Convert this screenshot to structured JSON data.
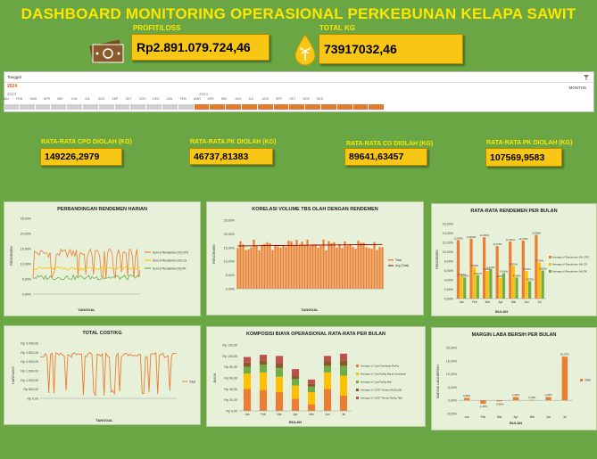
{
  "title": "DASHBOARD MONITORING OPERASIONAL PERKEBUNAN KELAPA SAWIT",
  "kpis": {
    "profit": {
      "label": "PROFIT/LOSS",
      "value": "Rp2.891.079.724,46",
      "icon": "money-icon"
    },
    "total_kg": {
      "label": "TOTAL KG",
      "value": "73917032,46",
      "icon": "oil-drop-palm-icon"
    }
  },
  "timeline": {
    "header": "Tanggal",
    "selected_label": "2024",
    "range_right": "MONTHS",
    "years": [
      "2023",
      "2024"
    ],
    "months": [
      "JAN",
      "FEB",
      "MAR",
      "APR",
      "MEI",
      "JUN",
      "JUL",
      "AGS",
      "SEP",
      "OKT",
      "NOV",
      "DES",
      "JAN",
      "FEB",
      "MAR",
      "APR",
      "MEI",
      "JUN",
      "JUL",
      "AGS",
      "SEP",
      "OKT",
      "NOV",
      "DES"
    ],
    "selected_from_index": 12,
    "selected_to_index": 23
  },
  "averages": [
    {
      "label": "RATA-RATA CPO DIOLAH (KG)",
      "value": "149226,2979"
    },
    {
      "label": "RATA-RATA PK DIOLAH (KG)",
      "value": "46737,81383"
    },
    {
      "label": "RATA-RATA CG DIOLAH (KG)",
      "value": "89641,63457"
    },
    {
      "label": "RATA-RATA PK DIOLAH (KG)",
      "value": "107569,9583"
    }
  ],
  "charts": {
    "rendemen_harian": {
      "title": "PERBANDINGAN RENDEMEN HARIAN",
      "ylabel": "RENDEMEN",
      "xlabel": "TANGGAL",
      "yticks": [
        "25,00%",
        "20,00%",
        "15,00%",
        "10,00%",
        "5,00%",
        "0,00%"
      ],
      "legend": [
        "Sum of Rendemen (%) CPO",
        "Sum of Rendemen (%) CG",
        "Sum of Rendemen (%) PK"
      ]
    },
    "korelasi": {
      "title": "KORELASI VOLUME TBS OLAH DENGAN RENDEMEN",
      "ylabel": "RENDEMEN",
      "xlabel": "TANGGAL",
      "yticks": [
        "25,00%",
        "20,00%",
        "15,00%",
        "10,00%",
        "5,00%",
        "0,00%"
      ],
      "legend": [
        "Total",
        "Avg (Total)"
      ]
    },
    "rendemen_bulan": {
      "title": "RATA-RATA RENDEMEN PER BULAN",
      "ylabel": "RENDEMEN",
      "xlabel": "BULAN",
      "yticks": [
        "16,00%",
        "14,00%",
        "12,00%",
        "10,00%",
        "8,00%",
        "6,00%",
        "4,00%",
        "2,00%",
        "0,00%"
      ],
      "categories": [
        "Jan",
        "Feb",
        "Mar",
        "Apr",
        "Mei",
        "Jun",
        "Jul"
      ],
      "series": [
        {
          "name": "Average of Rendemen (%) CPO",
          "values": [
            12.5,
            12.8,
            13.1,
            11.2,
            12.2,
            12.4,
            13.6
          ]
        },
        {
          "name": "Average of Rendemen (%) CG",
          "values": [
            4.8,
            6.7,
            5.9,
            4.4,
            7.0,
            5.9,
            7.7
          ]
        },
        {
          "name": "Average of Rendemen (%) PK",
          "values": [
            4.5,
            5.0,
            6.3,
            5.4,
            4.5,
            3.7,
            6.0
          ]
        }
      ],
      "labels": [
        [
          "12,545%",
          "12,803%",
          "13,069%",
          "11,175%",
          "12,243%",
          "12,370%",
          "13,585%"
        ],
        [
          "4,813%",
          "6,693%",
          "5,856%",
          "4,351%",
          "6,975%",
          "5,917%",
          "7,704%"
        ],
        [
          "4,540%",
          "5,007%",
          "6,272%",
          "5,418%",
          "4,549%",
          "3,673%",
          "5,992%"
        ]
      ]
    },
    "total_cost": {
      "title": "TOTAL COST/KG",
      "ylabel": "HARGA/KG",
      "xlabel": "TANGGAL",
      "yticks": [
        "Rp 3.000,00",
        "Rp 2.500,00",
        "Rp 2.000,00",
        "Rp 1.500,00",
        "Rp 1.000,00",
        "Rp 500,00",
        "Rp 0,00"
      ],
      "legend": [
        "Total"
      ]
    },
    "komposisi": {
      "title": "KOMPOSISI BIAYA OPERASIONAL RATA-RATA PER BULAN",
      "ylabel": "BIAYA",
      "xlabel": "BULAN",
      "yticks": [
        "Rp 120,00",
        "Rp 100,00",
        "Rp 80,00",
        "Rp 60,00",
        "Rp 40,00",
        "Rp 20,00",
        "Rp 0,00"
      ],
      "categories": [
        "Jan",
        "Feb",
        "Mar",
        "Apr",
        "Mei",
        "Jun",
        "Jul"
      ],
      "series": [
        {
          "name": "Average of Cost Overhead Rp/Kg",
          "values": [
            40,
            38,
            34,
            22,
            12,
            40,
            28
          ]
        },
        {
          "name": "Average of Cost Rp/kg Bayar Karyawan",
          "values": [
            28,
            32,
            28,
            24,
            22,
            30,
            36
          ]
        },
        {
          "name": "Average of Cost Rp/kg Ball",
          "values": [
            12,
            14,
            16,
            12,
            10,
            12,
            18
          ]
        },
        {
          "name": "Average of COST Vendor Rp/Kg SB",
          "values": [
            8,
            8,
            8,
            6,
            5,
            8,
            10
          ]
        },
        {
          "name": "Average of COST Tender Rp/kg TBS",
          "values": [
            10,
            10,
            14,
            12,
            8,
            10,
            12
          ]
        }
      ],
      "legend": [
        "Average of Cost Overhead Rp/Kg",
        "Average of Cost Rp/kg Bayar Karyawan",
        "Average of Cost Rp/kg Ball",
        "Average of COST Vendor Rp/Kg SB",
        "Average of COST Tender Rp/kg TBS"
      ]
    },
    "margin": {
      "title": "MARGIN LABA BERSIH PER BULAN",
      "ylabel": "MARGIN LABA BERSIH",
      "xlabel": "BULAN",
      "yticks": [
        "20,00%",
        "15,00%",
        "10,00%",
        "5,00%",
        "0,00%",
        "-5,00%"
      ],
      "categories": [
        "Jan",
        "Feb",
        "Mar",
        "Apr",
        "Mei",
        "Jun",
        "Jul"
      ],
      "values": [
        0.95,
        -1.29,
        -0.36,
        1.26,
        0.18,
        1.26,
        16.57
      ],
      "labels": [
        "0,95%",
        "-1,29%",
        "-0,36%",
        "1,26%",
        "0,18%",
        "1,26%",
        "16,57%"
      ],
      "legend": [
        "Total"
      ]
    }
  },
  "colors": {
    "background": "#6aa744",
    "accent": "#f8c614",
    "title": "#ffe600",
    "orange": "#ed7d31",
    "gray": "#a5a5a5",
    "yellow": "#ffc000",
    "green": "#70ad47",
    "blue": "#4472c4"
  }
}
